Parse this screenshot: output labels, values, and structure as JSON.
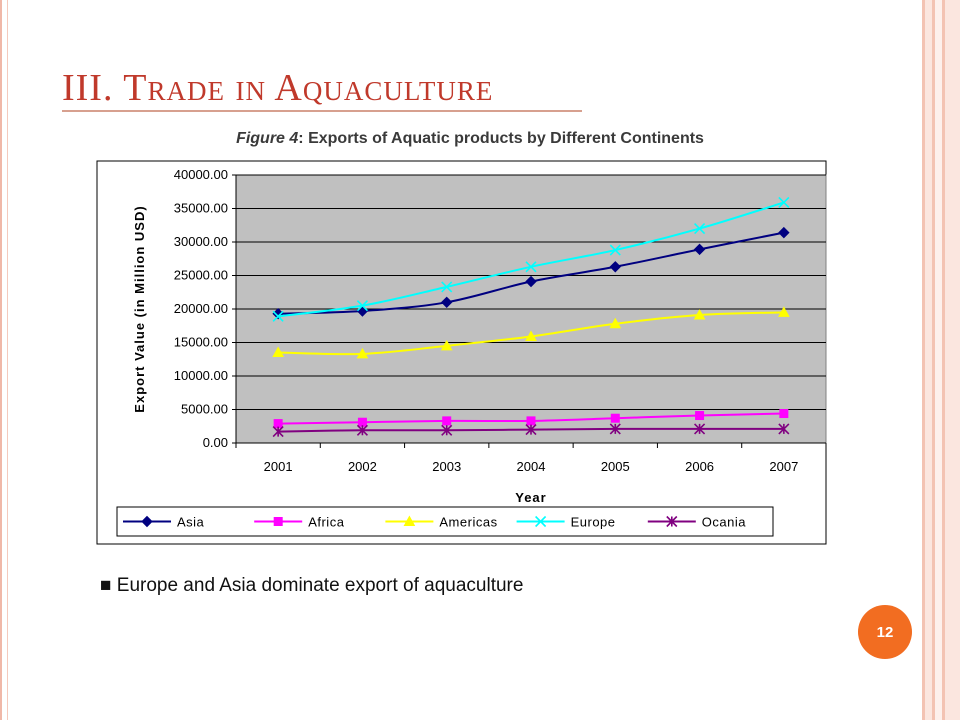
{
  "slide": {
    "title": "III. Trade in Aquaculture",
    "caption_label": "Figure 4",
    "caption_text": ": Exports of Aquatic products by Different Continents",
    "bullet_marker": "■",
    "bullet_text": "Europe and Asia dominate export of aquaculture",
    "page_number": "12"
  },
  "colors": {
    "title": "#c0392b",
    "plot_background": "#c0c0c0",
    "page_badge": "#f26d21"
  },
  "chart_data": {
    "type": "line",
    "title": "Figure 4: Exports of Aquatic products by Different Continents",
    "xlabel": "Year",
    "ylabel": "Export Value (in Million USD)",
    "categories": [
      "2001",
      "2002",
      "2003",
      "2004",
      "2005",
      "2006",
      "2007"
    ],
    "ylim": [
      0,
      40000
    ],
    "yticks": [
      "0.00",
      "5000.00",
      "10000.00",
      "15000.00",
      "20000.00",
      "25000.00",
      "30000.00",
      "35000.00",
      "40000.00"
    ],
    "grid": "horizontal",
    "legend_position": "bottom",
    "series": [
      {
        "name": "Asia",
        "color": "#000080",
        "marker": "diamond",
        "values": [
          19300,
          19700,
          21000,
          24100,
          26300,
          28900,
          31400
        ]
      },
      {
        "name": "Africa",
        "color": "#ff00ff",
        "marker": "square",
        "values": [
          2900,
          3100,
          3300,
          3300,
          3700,
          4100,
          4400
        ]
      },
      {
        "name": "Americas",
        "color": "#ffff00",
        "marker": "triangle",
        "values": [
          13500,
          13300,
          14500,
          15900,
          17800,
          19100,
          19500
        ]
      },
      {
        "name": "Europe",
        "color": "#00ffff",
        "marker": "x",
        "values": [
          18900,
          20500,
          23300,
          26300,
          28800,
          32000,
          35900
        ]
      },
      {
        "name": "Ocania",
        "color": "#800080",
        "marker": "star",
        "values": [
          1700,
          1900,
          1900,
          2000,
          2100,
          2100,
          2100
        ]
      }
    ]
  }
}
